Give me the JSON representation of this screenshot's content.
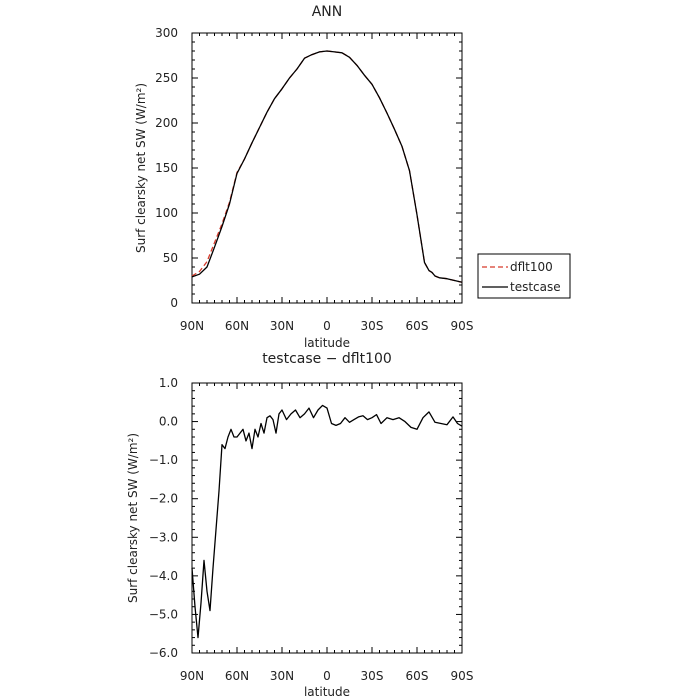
{
  "chart_data": [
    {
      "type": "line",
      "title": "ANN",
      "xlabel": "latitude",
      "ylabel": "Surf clearsky net SW (W/m²)",
      "xlim": [
        -90,
        90
      ],
      "ylim": [
        0,
        300
      ],
      "x_ticks": [
        -90,
        -60,
        -30,
        0,
        30,
        60,
        90
      ],
      "x_tick_labels": [
        "90N",
        "60N",
        "30N",
        "0",
        "30S",
        "60S",
        "90S"
      ],
      "y_ticks": [
        0,
        50,
        100,
        150,
        200,
        250,
        300
      ],
      "y_tick_labels": [
        "0",
        "50",
        "100",
        "150",
        "200",
        "250",
        "300"
      ],
      "legend": "right",
      "x": [
        -90,
        -85,
        -80,
        -75,
        -70,
        -65,
        -60,
        -55,
        -50,
        -45,
        -40,
        -35,
        -30,
        -25,
        -20,
        -15,
        -10,
        -5,
        0,
        5,
        10,
        15,
        20,
        25,
        30,
        35,
        40,
        45,
        50,
        55,
        60,
        65,
        68,
        70,
        72,
        75,
        80,
        85,
        90
      ],
      "series": [
        {
          "name": "dflt100",
          "color": "#d63a2a",
          "dash": true,
          "values": [
            30,
            35,
            46,
            67,
            88,
            112,
            145,
            160,
            178,
            195,
            212,
            227,
            238,
            250,
            260,
            272,
            276,
            279,
            280,
            279,
            278,
            273,
            264,
            253,
            243,
            228,
            211,
            193,
            174,
            147,
            98,
            45,
            36,
            34,
            30,
            28,
            27,
            25,
            23
          ]
        },
        {
          "name": "testcase",
          "color": "#000000",
          "dash": false,
          "values": [
            29,
            32,
            40,
            62,
            85,
            110,
            144,
            160,
            178,
            195,
            212,
            227,
            238,
            250,
            260,
            272,
            276,
            279,
            280,
            279,
            278,
            273,
            264,
            253,
            243,
            228,
            211,
            193,
            174,
            147,
            98,
            45,
            36,
            34,
            30,
            28,
            27,
            25,
            23
          ]
        }
      ]
    },
    {
      "type": "line",
      "title": "testcase − dflt100",
      "xlabel": "latitude",
      "ylabel": "Surf clearsky net SW (W/m²)",
      "xlim": [
        -90,
        90
      ],
      "ylim": [
        -6,
        1
      ],
      "x_ticks": [
        -90,
        -60,
        -30,
        0,
        30,
        60,
        90
      ],
      "x_tick_labels": [
        "90N",
        "60N",
        "30N",
        "0",
        "30S",
        "60S",
        "90S"
      ],
      "y_ticks": [
        -6,
        -5,
        -4,
        -3,
        -2,
        -1,
        0,
        1
      ],
      "y_tick_labels": [
        "−6.0",
        "−5.0",
        "−4.0",
        "−3.0",
        "−2.0",
        "−1.0",
        "0.0",
        "1.0"
      ],
      "x": [
        -90,
        -88,
        -86,
        -84,
        -82,
        -80,
        -78,
        -76,
        -74,
        -72,
        -70,
        -68,
        -66,
        -64,
        -62,
        -60,
        -58,
        -56,
        -54,
        -52,
        -50,
        -48,
        -46,
        -44,
        -42,
        -40,
        -38,
        -36,
        -34,
        -32,
        -30,
        -27,
        -24,
        -21,
        -18,
        -15,
        -12,
        -9,
        -6,
        -3,
        0,
        3,
        6,
        9,
        12,
        15,
        18,
        21,
        24,
        27,
        30,
        33,
        36,
        40,
        44,
        48,
        52,
        56,
        60,
        64,
        68,
        72,
        76,
        80,
        84,
        87,
        90
      ],
      "series": [
        {
          "name": "",
          "color": "#000000",
          "dash": false,
          "values": [
            -3.8,
            -4.8,
            -5.6,
            -4.7,
            -3.6,
            -4.4,
            -4.9,
            -3.8,
            -2.8,
            -1.8,
            -0.6,
            -0.7,
            -0.4,
            -0.2,
            -0.4,
            -0.4,
            -0.3,
            -0.2,
            -0.5,
            -0.3,
            -0.7,
            -0.2,
            -0.4,
            -0.05,
            -0.3,
            0.1,
            0.15,
            0.05,
            -0.3,
            0.2,
            0.3,
            0.05,
            0.2,
            0.3,
            0.1,
            0.2,
            0.35,
            0.1,
            0.3,
            0.42,
            0.35,
            -0.05,
            -0.1,
            -0.05,
            0.1,
            -0.02,
            0.05,
            0.12,
            0.15,
            0.05,
            0.1,
            0.18,
            -0.05,
            0.1,
            0.05,
            0.1,
            0.0,
            -0.15,
            -0.2,
            0.1,
            0.25,
            -0.02,
            -0.05,
            -0.08,
            0.12,
            -0.05,
            -0.12
          ]
        }
      ]
    }
  ]
}
